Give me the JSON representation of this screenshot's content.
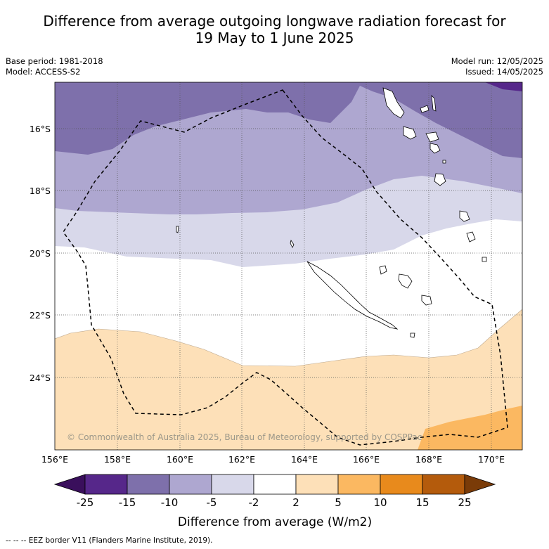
{
  "title": {
    "line1": "Difference from average outgoing longwave radiation forecast for",
    "line2": "19 May to 1 June 2025"
  },
  "meta_left": {
    "base_period": "Base period: 1981-2018",
    "model": "Model: ACCESS-S2"
  },
  "meta_right": {
    "model_run": "Model run: 12/05/2025",
    "issued": "Issued: 14/05/2025"
  },
  "map": {
    "lon_labels": [
      "156°E",
      "158°E",
      "160°E",
      "162°E",
      "164°E",
      "166°E",
      "168°E",
      "170°E"
    ],
    "lat_labels": [
      "16°S",
      "18°S",
      "20°S",
      "22°S",
      "24°S"
    ],
    "copyright": "© Commonwealth of Australia 2025, Bureau of Meteorology, supported by COSPPac"
  },
  "colorbar": {
    "ticks": [
      "-25",
      "-15",
      "-10",
      "-5",
      "-2",
      "2",
      "5",
      "10",
      "15",
      "25"
    ],
    "colors": {
      "below_-25": "#3a0f5c",
      "-25_-15": "#56278a",
      "-15_-10": "#7e70ab",
      "-10_-5": "#aea7d0",
      "-5_-2": "#d8d8ea",
      "-2_2": "#ffffff",
      "2_5": "#fde0b8",
      "5_10": "#fbb861",
      "10_15": "#e88a1c",
      "15_25": "#b45b0c",
      "above_25": "#7a3b08"
    },
    "label": "Difference from average (W/m2)"
  },
  "footer": {
    "legend": "--  --  -- EEZ border V11 (Flanders Marine Institute, 2019)."
  }
}
